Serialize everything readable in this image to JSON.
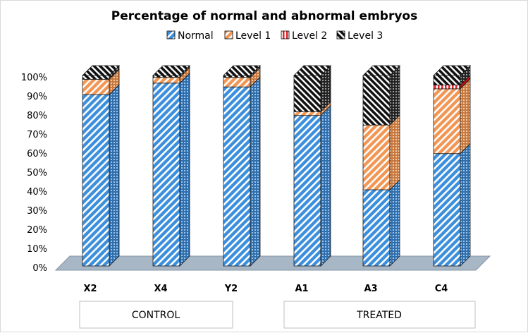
{
  "chart_data": {
    "type": "bar",
    "stacked": true,
    "three_d": true,
    "title": "Percentage of normal and abnormal embryos",
    "categories": [
      "X2",
      "X4",
      "Y2",
      "A1",
      "A3",
      "C4"
    ],
    "groups": [
      {
        "label": "CONTROL",
        "categories": [
          "X2",
          "X4",
          "Y2"
        ]
      },
      {
        "label": "TREATED",
        "categories": [
          "A1",
          "A3",
          "C4"
        ]
      }
    ],
    "series": [
      {
        "name": "Normal",
        "color": "#3c8fdc",
        "values": [
          90,
          96,
          94,
          79,
          40,
          59
        ]
      },
      {
        "name": "Level 1",
        "color": "#f29654",
        "values": [
          8,
          3,
          5,
          2,
          34,
          34
        ]
      },
      {
        "name": "Level 2",
        "color": "#e0202a",
        "values": [
          0,
          0,
          0,
          0,
          0,
          2
        ]
      },
      {
        "name": "Level 3",
        "color": "#111111",
        "values": [
          2,
          1,
          1,
          19,
          26,
          5
        ]
      }
    ],
    "yticks": [
      "0%",
      "10%",
      "20%",
      "30%",
      "40%",
      "50%",
      "60%",
      "70%",
      "80%",
      "90%",
      "100%"
    ],
    "ylim": [
      0,
      100
    ],
    "legend_position": "top",
    "grid": false
  }
}
